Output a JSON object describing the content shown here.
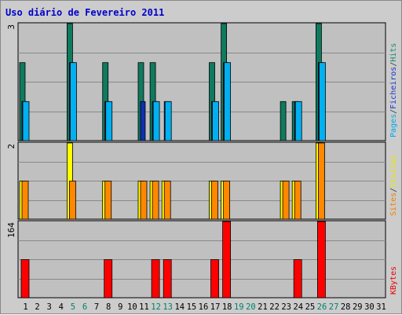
{
  "chart_data": {
    "type": "bar",
    "title": "Uso diário de Fevereiro 2011",
    "categories": [
      "1",
      "2",
      "3",
      "4",
      "5",
      "6",
      "7",
      "8",
      "9",
      "10",
      "11",
      "12",
      "13",
      "14",
      "15",
      "16",
      "17",
      "18",
      "19",
      "20",
      "21",
      "22",
      "23",
      "24",
      "25",
      "26",
      "27",
      "28",
      "29",
      "30",
      "31"
    ],
    "weekend_days": [
      "5",
      "6",
      "12",
      "13",
      "19",
      "20",
      "26",
      "27"
    ],
    "panels": [
      {
        "id": "hits",
        "max_label": "3",
        "ylim": [
          0,
          3
        ],
        "legend": [
          {
            "text": "Pages",
            "color": "#00a8e8"
          },
          {
            "text": "/",
            "color": "#333333"
          },
          {
            "text": "Ficheiros",
            "color": "#1c36c8"
          },
          {
            "text": "/",
            "color": "#333333"
          },
          {
            "text": "Hits",
            "color": "#1a8a6e"
          }
        ],
        "series": [
          {
            "name": "Hits",
            "color": "#0f7a5e",
            "values": [
              2,
              0,
              0,
              0,
              3,
              0,
              0,
              2,
              0,
              0,
              2,
              2,
              0,
              0,
              0,
              0,
              2,
              3,
              0,
              0,
              0,
              0,
              1,
              1,
              0,
              3,
              0,
              0,
              0,
              0,
              0
            ]
          },
          {
            "name": "Ficheiros",
            "color": "#1030b0",
            "values": [
              1,
              0,
              0,
              0,
              2,
              0,
              0,
              1,
              0,
              0,
              1,
              1,
              1,
              0,
              0,
              0,
              1,
              2,
              0,
              0,
              0,
              0,
              0,
              1,
              0,
              2,
              0,
              0,
              0,
              0,
              0
            ]
          },
          {
            "name": "Pages",
            "color": "#00b0f0",
            "values": [
              1,
              0,
              0,
              0,
              2,
              0,
              0,
              1,
              0,
              0,
              0,
              1,
              1,
              0,
              0,
              0,
              1,
              2,
              0,
              0,
              0,
              0,
              0,
              1,
              0,
              2,
              0,
              0,
              0,
              0,
              0
            ]
          }
        ]
      },
      {
        "id": "visits",
        "max_label": "2",
        "ylim": [
          0,
          2
        ],
        "legend": [
          {
            "text": "Sites",
            "color": "#f08000"
          },
          {
            "text": "/",
            "color": "#333333"
          },
          {
            "text": "Visitas",
            "color": "#e8e800"
          }
        ],
        "series": [
          {
            "name": "Visitas",
            "color": "#ffff00",
            "values": [
              1,
              0,
              0,
              0,
              2,
              0,
              0,
              1,
              0,
              0,
              1,
              1,
              1,
              0,
              0,
              0,
              1,
              1,
              0,
              0,
              0,
              0,
              1,
              1,
              0,
              2,
              0,
              0,
              0,
              0,
              0
            ]
          },
          {
            "name": "Sites",
            "color": "#ff8800",
            "values": [
              1,
              0,
              0,
              0,
              1,
              0,
              0,
              1,
              0,
              0,
              1,
              1,
              1,
              0,
              0,
              0,
              1,
              1,
              0,
              0,
              0,
              0,
              1,
              1,
              0,
              2,
              0,
              0,
              0,
              0,
              0
            ]
          }
        ]
      },
      {
        "id": "kbytes",
        "max_label": "164",
        "ylim": [
          0,
          164
        ],
        "legend": [
          {
            "text": "KBytes",
            "color": "#e80000"
          }
        ],
        "series": [
          {
            "name": "KBytes",
            "color": "#ff0000",
            "values": [
              82,
              0,
              0,
              0,
              0,
              0,
              0,
              82,
              0,
              0,
              0,
              82,
              82,
              0,
              0,
              0,
              82,
              164,
              0,
              0,
              0,
              0,
              0,
              82,
              0,
              164,
              0,
              0,
              0,
              0,
              0
            ]
          }
        ]
      }
    ],
    "grid": true
  },
  "colors": {
    "title": "#0000cc",
    "weekday_label": "#000000",
    "weekend_label": "#00806b",
    "plot_bg": "#c0c0c0"
  }
}
